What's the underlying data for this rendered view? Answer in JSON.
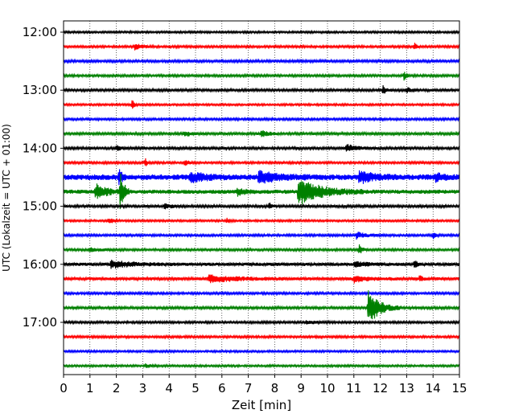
{
  "chart_data": {
    "type": "line",
    "title": "",
    "xlabel": "Zeit  [min]",
    "ylabel": "UTC (Lokalzeit = UTC + 01:00)",
    "xlim": [
      0,
      15
    ],
    "x_ticks": [
      0,
      1,
      2,
      3,
      4,
      5,
      6,
      7,
      8,
      9,
      10,
      11,
      12,
      13,
      14,
      15
    ],
    "y_ticks": [
      "12:00",
      "13:00",
      "14:00",
      "15:00",
      "16:00",
      "17:00"
    ],
    "grid": "vertical dotted lines at each minute",
    "trace_interval_min": 15,
    "trace_start": "12:00",
    "trace_end": "17:45",
    "trace_color_cycle": [
      "#000000",
      "#ff0000",
      "#0000ff",
      "#008000"
    ],
    "traces": [
      {
        "start": "12:00",
        "color": "#000000",
        "noise": 0.8,
        "events": []
      },
      {
        "start": "12:15",
        "color": "#ff0000",
        "noise": 0.9,
        "events": [
          {
            "t": 2.7,
            "amp": 4,
            "dur": 0.3
          },
          {
            "t": 13.3,
            "amp": 5,
            "dur": 0.1
          }
        ]
      },
      {
        "start": "12:30",
        "color": "#0000ff",
        "noise": 1.0,
        "events": []
      },
      {
        "start": "12:45",
        "color": "#008000",
        "noise": 0.9,
        "events": [
          {
            "t": 12.9,
            "amp": 6,
            "dur": 0.1
          }
        ]
      },
      {
        "start": "13:00",
        "color": "#000000",
        "noise": 1.0,
        "events": [
          {
            "t": 12.1,
            "amp": 5,
            "dur": 0.15
          },
          {
            "t": 13.0,
            "amp": 3,
            "dur": 0.2
          }
        ]
      },
      {
        "start": "13:15",
        "color": "#ff0000",
        "noise": 0.8,
        "events": [
          {
            "t": 2.6,
            "amp": 6,
            "dur": 0.1
          }
        ]
      },
      {
        "start": "13:30",
        "color": "#0000ff",
        "noise": 0.9,
        "events": []
      },
      {
        "start": "13:45",
        "color": "#008000",
        "noise": 1.0,
        "events": [
          {
            "t": 4.6,
            "amp": 4,
            "dur": 0.2
          },
          {
            "t": 7.5,
            "amp": 4,
            "dur": 0.3
          }
        ]
      },
      {
        "start": "14:00",
        "color": "#000000",
        "noise": 1.0,
        "events": [
          {
            "t": 10.7,
            "amp": 5,
            "dur": 0.4
          },
          {
            "t": 2.0,
            "amp": 3,
            "dur": 0.2
          }
        ]
      },
      {
        "start": "14:15",
        "color": "#ff0000",
        "noise": 0.9,
        "events": [
          {
            "t": 3.1,
            "amp": 5,
            "dur": 0.1
          },
          {
            "t": 4.6,
            "amp": 3,
            "dur": 0.2
          }
        ]
      },
      {
        "start": "14:30",
        "color": "#0000ff",
        "noise": 2.2,
        "events": [
          {
            "t": 2.1,
            "amp": 13,
            "dur": 0.1
          },
          {
            "t": 4.8,
            "amp": 6,
            "dur": 0.6
          },
          {
            "t": 7.4,
            "amp": 7,
            "dur": 0.8
          },
          {
            "t": 11.2,
            "amp": 7,
            "dur": 0.6
          },
          {
            "t": 14.1,
            "amp": 5,
            "dur": 0.3
          }
        ]
      },
      {
        "start": "14:45",
        "color": "#008000",
        "noise": 1.6,
        "events": [
          {
            "t": 1.2,
            "amp": 9,
            "dur": 0.5
          },
          {
            "t": 2.15,
            "amp": 26,
            "dur": 0.15
          },
          {
            "t": 8.9,
            "amp": 16,
            "dur": 1.0
          },
          {
            "t": 6.6,
            "amp": 4,
            "dur": 0.3
          }
        ]
      },
      {
        "start": "15:00",
        "color": "#000000",
        "noise": 1.0,
        "events": [
          {
            "t": 7.8,
            "amp": 4,
            "dur": 0.1
          },
          {
            "t": 3.8,
            "amp": 3,
            "dur": 0.3
          }
        ]
      },
      {
        "start": "15:15",
        "color": "#ff0000",
        "noise": 0.8,
        "events": [
          {
            "t": 1.7,
            "amp": 4,
            "dur": 0.2
          },
          {
            "t": 6.2,
            "amp": 3,
            "dur": 0.1
          }
        ]
      },
      {
        "start": "15:30",
        "color": "#0000ff",
        "noise": 0.9,
        "events": [
          {
            "t": 11.1,
            "amp": 4,
            "dur": 0.4
          },
          {
            "t": 14.0,
            "amp": 4,
            "dur": 0.1
          }
        ]
      },
      {
        "start": "15:45",
        "color": "#008000",
        "noise": 0.9,
        "events": [
          {
            "t": 11.2,
            "amp": 6,
            "dur": 0.15
          },
          {
            "t": 1.0,
            "amp": 2,
            "dur": 0.6
          }
        ]
      },
      {
        "start": "16:00",
        "color": "#000000",
        "noise": 1.3,
        "events": [
          {
            "t": 1.8,
            "amp": 4,
            "dur": 1.0
          },
          {
            "t": 13.3,
            "amp": 5,
            "dur": 0.1
          },
          {
            "t": 11.0,
            "amp": 3,
            "dur": 0.5
          }
        ]
      },
      {
        "start": "16:15",
        "color": "#ff0000",
        "noise": 1.2,
        "events": [
          {
            "t": 5.5,
            "amp": 4,
            "dur": 1.2
          },
          {
            "t": 11.0,
            "amp": 4,
            "dur": 0.6
          },
          {
            "t": 13.5,
            "amp": 4,
            "dur": 0.1
          }
        ]
      },
      {
        "start": "16:30",
        "color": "#0000ff",
        "noise": 0.9,
        "events": []
      },
      {
        "start": "16:45",
        "color": "#008000",
        "noise": 1.0,
        "events": [
          {
            "t": 11.55,
            "amp": 22,
            "dur": 0.5
          }
        ]
      },
      {
        "start": "17:00",
        "color": "#000000",
        "noise": 0.9,
        "events": [
          {
            "t": 9.2,
            "amp": 2,
            "dur": 0.4
          }
        ]
      },
      {
        "start": "17:15",
        "color": "#ff0000",
        "noise": 0.9,
        "events": []
      },
      {
        "start": "17:30",
        "color": "#0000ff",
        "noise": 0.8,
        "events": []
      },
      {
        "start": "17:45",
        "color": "#008000",
        "noise": 0.8,
        "events": [
          {
            "t": 3.1,
            "amp": 2,
            "dur": 0.3
          }
        ]
      }
    ]
  }
}
